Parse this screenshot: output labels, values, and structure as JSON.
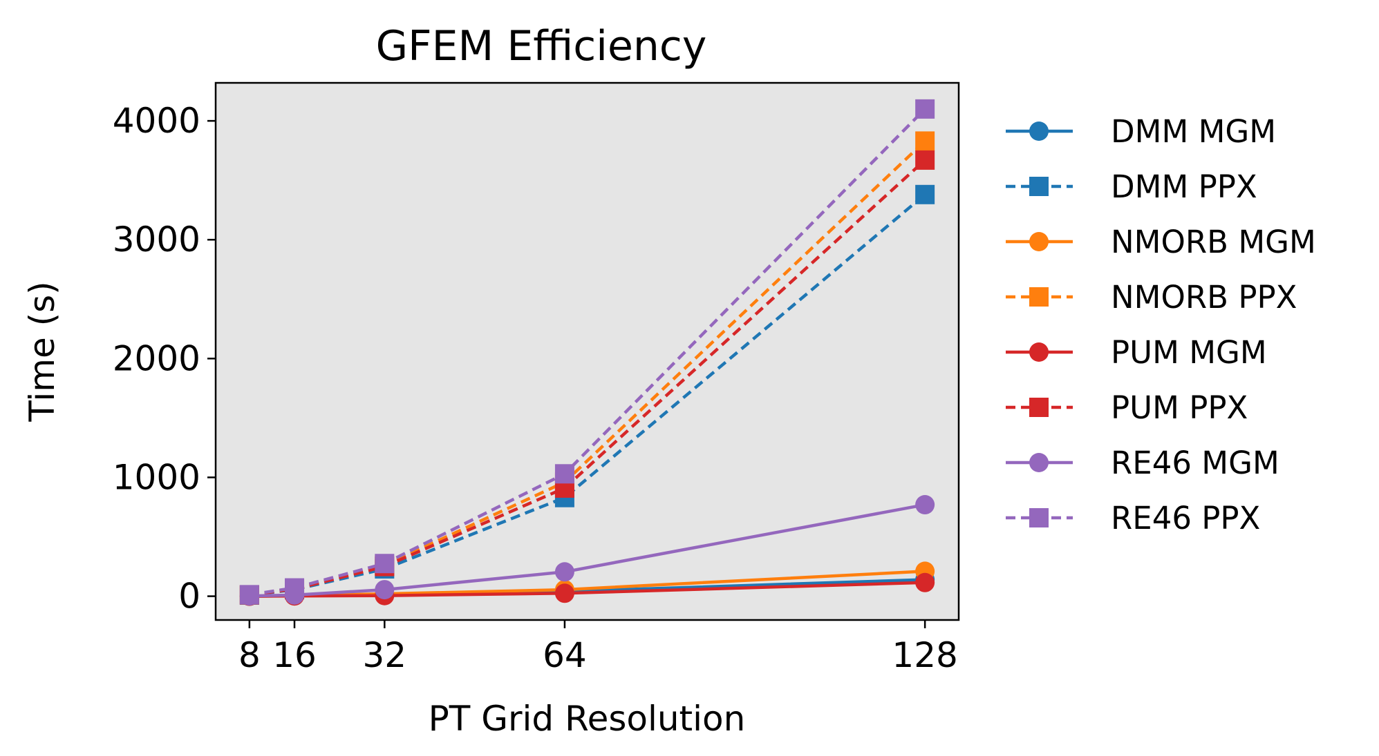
{
  "chart_data": {
    "type": "line",
    "title": "GFEM Efficiency",
    "xlabel": "PT Grid Resolution",
    "ylabel": "Time (s)",
    "x": [
      8,
      16,
      32,
      64,
      128
    ],
    "xticks": [
      8,
      16,
      32,
      64,
      128
    ],
    "xlim": [
      2,
      134
    ],
    "yticks": [
      0,
      1000,
      2000,
      3000,
      4000
    ],
    "ylim": [
      -200,
      4320
    ],
    "grid": false,
    "background": "#e5e5e5",
    "legend_position": "outside-right",
    "series": [
      {
        "name": "DMM MGM",
        "color": "#1f77b4",
        "linestyle": "solid",
        "marker": "circle",
        "values": [
          0,
          3,
          15,
          40,
          140
        ]
      },
      {
        "name": "DMM PPX",
        "color": "#1f77b4",
        "linestyle": "dashed",
        "marker": "square",
        "values": [
          10,
          55,
          230,
          830,
          3380
        ]
      },
      {
        "name": "NMORB MGM",
        "color": "#ff7f0e",
        "linestyle": "solid",
        "marker": "circle",
        "values": [
          0,
          4,
          20,
          55,
          210
        ]
      },
      {
        "name": "NMORB PPX",
        "color": "#ff7f0e",
        "linestyle": "dashed",
        "marker": "square",
        "values": [
          12,
          62,
          260,
          960,
          3830
        ]
      },
      {
        "name": "PUM MGM",
        "color": "#d62728",
        "linestyle": "solid",
        "marker": "circle",
        "values": [
          0,
          2,
          5,
          25,
          115
        ]
      },
      {
        "name": "PUM PPX",
        "color": "#d62728",
        "linestyle": "dashed",
        "marker": "square",
        "values": [
          11,
          60,
          250,
          910,
          3670
        ]
      },
      {
        "name": "RE46 MGM",
        "color": "#9467bd",
        "linestyle": "solid",
        "marker": "circle",
        "values": [
          2,
          10,
          55,
          205,
          770
        ]
      },
      {
        "name": "RE46 PPX",
        "color": "#9467bd",
        "linestyle": "dashed",
        "marker": "square",
        "values": [
          13,
          70,
          275,
          1030,
          4100
        ]
      }
    ]
  }
}
